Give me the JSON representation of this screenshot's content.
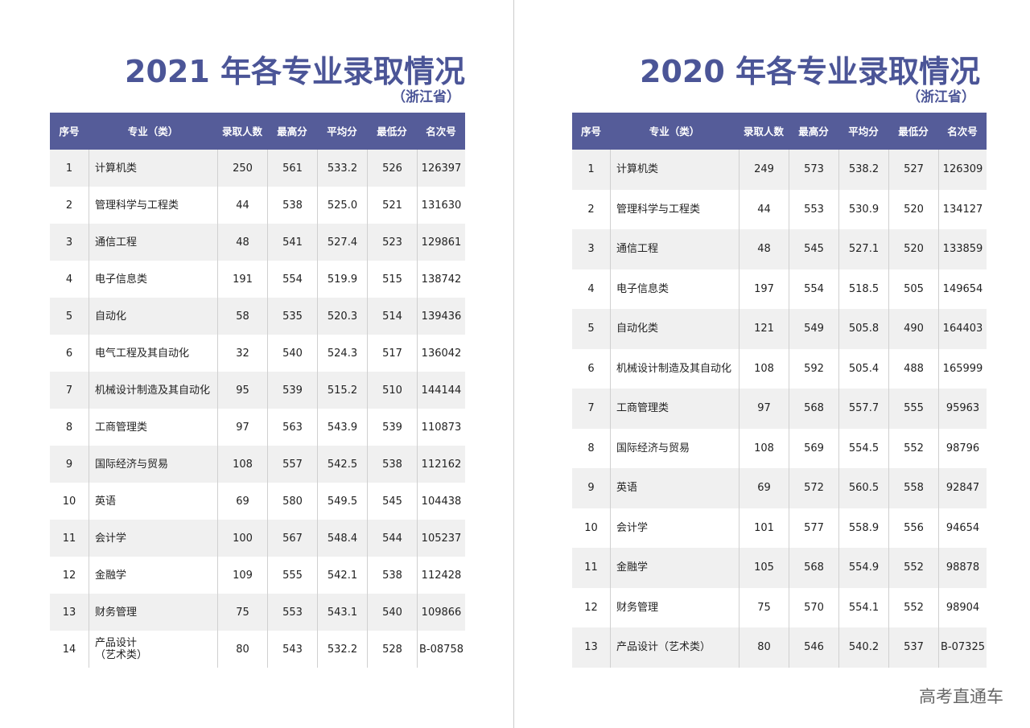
{
  "pages": [
    {
      "title": "2021 年各专业录取情况",
      "subtitle": "（浙江省）",
      "table": {
        "header": [
          "序号",
          "专业（类）",
          "录取人数",
          "最高分",
          "平均分",
          "最低分",
          "名次号"
        ],
        "rows": [
          [
            "1",
            "计算机类",
            "250",
            "561",
            "533.2",
            "526",
            "126397"
          ],
          [
            "2",
            "管理科学与工程类",
            "44",
            "538",
            "525.0",
            "521",
            "131630"
          ],
          [
            "3",
            "通信工程",
            "48",
            "541",
            "527.4",
            "523",
            "129861"
          ],
          [
            "4",
            "电子信息类",
            "191",
            "554",
            "519.9",
            "515",
            "138742"
          ],
          [
            "5",
            "自动化",
            "58",
            "535",
            "520.3",
            "514",
            "139436"
          ],
          [
            "6",
            "电气工程及其自动化",
            "32",
            "540",
            "524.3",
            "517",
            "136042"
          ],
          [
            "7",
            "机械设计制造及其自动化",
            "95",
            "539",
            "515.2",
            "510",
            "144144"
          ],
          [
            "8",
            "工商管理类",
            "97",
            "563",
            "543.9",
            "539",
            "110873"
          ],
          [
            "9",
            "国际经济与贸易",
            "108",
            "557",
            "542.5",
            "538",
            "112162"
          ],
          [
            "10",
            "英语",
            "69",
            "580",
            "549.5",
            "545",
            "104438"
          ],
          [
            "11",
            "会计学",
            "100",
            "567",
            "548.4",
            "544",
            "105237"
          ],
          [
            "12",
            "金融学",
            "109",
            "555",
            "542.1",
            "538",
            "112428"
          ],
          [
            "13",
            "财务管理",
            "75",
            "553",
            "543.1",
            "540",
            "109866"
          ],
          [
            "14",
            "产品设计\n（艺术类）",
            "80",
            "543",
            "532.2",
            "528",
            "B-08758"
          ]
        ]
      }
    },
    {
      "title": "2020 年各专业录取情况",
      "subtitle": "（浙江省）",
      "table": {
        "header": [
          "序号",
          "专业（类）",
          "录取人数",
          "最高分",
          "平均分",
          "最低分",
          "名次号"
        ],
        "rows": [
          [
            "1",
            "计算机类",
            "249",
            "573",
            "538.2",
            "527",
            "126309"
          ],
          [
            "2",
            "管理科学与工程类",
            "44",
            "553",
            "530.9",
            "520",
            "134127"
          ],
          [
            "3",
            "通信工程",
            "48",
            "545",
            "527.1",
            "520",
            "133859"
          ],
          [
            "4",
            "电子信息类",
            "197",
            "554",
            "518.5",
            "505",
            "149654"
          ],
          [
            "5",
            "自动化类",
            "121",
            "549",
            "505.8",
            "490",
            "164403"
          ],
          [
            "6",
            "机械设计制造及其自动化",
            "108",
            "592",
            "505.4",
            "488",
            "165999"
          ],
          [
            "7",
            "工商管理类",
            "97",
            "568",
            "557.7",
            "555",
            "95963"
          ],
          [
            "8",
            "国际经济与贸易",
            "108",
            "569",
            "554.5",
            "552",
            "98796"
          ],
          [
            "9",
            "英语",
            "69",
            "572",
            "560.5",
            "558",
            "92847"
          ],
          [
            "10",
            "会计学",
            "101",
            "577",
            "558.9",
            "556",
            "94654"
          ],
          [
            "11",
            "金融学",
            "105",
            "568",
            "554.9",
            "552",
            "98878"
          ],
          [
            "12",
            "财务管理",
            "75",
            "570",
            "554.1",
            "552",
            "98904"
          ],
          [
            "13",
            "产品设计（艺术类）",
            "80",
            "546",
            "540.2",
            "537",
            "B-07325"
          ]
        ]
      }
    }
  ],
  "watermark": "高考直通车"
}
